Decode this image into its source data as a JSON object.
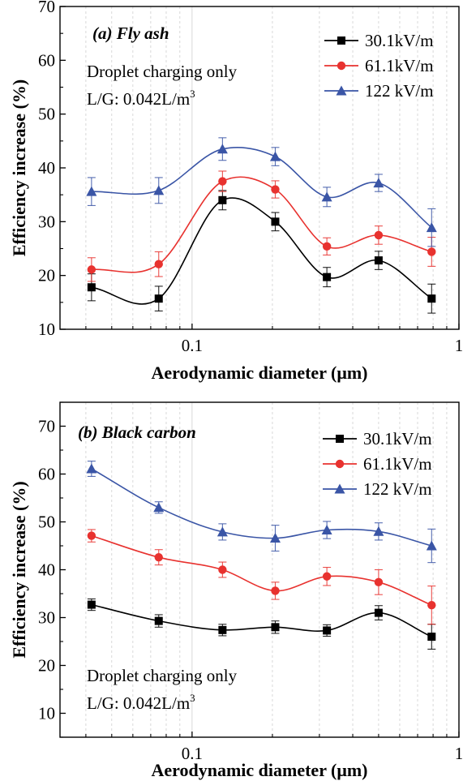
{
  "chart_data": [
    {
      "type": "line",
      "title": "(a) Fly ash",
      "xlabel": "Aerodynamic diameter (μm)",
      "ylabel": "Efficiency increase (%)",
      "xscale": "log",
      "xlim": [
        0.032,
        1.0
      ],
      "ylim": [
        10,
        70
      ],
      "xticks": [
        "0.1",
        "1"
      ],
      "yticks": [
        "10",
        "20",
        "30",
        "40",
        "50",
        "60",
        "70"
      ],
      "grid": "vertical minor gridlines",
      "legend_position": "top-right",
      "annotations": [
        "Droplet charging only",
        "L/G: 0.042L/m",
        "3"
      ],
      "x": [
        0.042,
        0.075,
        0.13,
        0.205,
        0.32,
        0.5,
        0.79
      ],
      "series": [
        {
          "name": "30.1kV/m",
          "color": "#000000",
          "marker": "square",
          "values": [
            17.8,
            15.7,
            34.0,
            30.0,
            19.7,
            22.8,
            15.7
          ],
          "errors": [
            2.5,
            2.3,
            1.8,
            1.7,
            1.8,
            1.7,
            2.7
          ]
        },
        {
          "name": "61.1kV/m",
          "color": "#e8322f",
          "marker": "circle",
          "values": [
            21.1,
            22.1,
            37.5,
            36.0,
            25.4,
            27.5,
            24.4
          ],
          "errors": [
            2.2,
            2.3,
            1.9,
            1.6,
            1.6,
            1.7,
            2.7
          ]
        },
        {
          "name": "122 kV/m",
          "color": "#3a55a6",
          "marker": "triangle",
          "values": [
            35.6,
            35.8,
            43.5,
            42.1,
            34.6,
            37.2,
            28.9
          ],
          "errors": [
            2.6,
            2.4,
            2.1,
            1.7,
            1.8,
            1.6,
            3.5
          ]
        }
      ]
    },
    {
      "type": "line",
      "title": "(b) Black carbon",
      "xlabel": "Aerodynamic diameter (μm)",
      "ylabel": "Efficiency increase (%)",
      "xscale": "log",
      "xlim": [
        0.032,
        1.0
      ],
      "ylim": [
        5,
        75
      ],
      "xticks": [
        "0.1",
        "1"
      ],
      "yticks": [
        "10",
        "20",
        "30",
        "40",
        "50",
        "60",
        "70"
      ],
      "grid": "vertical minor gridlines",
      "legend_position": "top-right",
      "annotations": [
        "Droplet charging only",
        "L/G: 0.042L/m",
        "3"
      ],
      "x": [
        0.042,
        0.075,
        0.13,
        0.205,
        0.32,
        0.5,
        0.79
      ],
      "series": [
        {
          "name": "30.1kV/m",
          "color": "#000000",
          "marker": "square",
          "values": [
            32.7,
            29.3,
            27.4,
            28.0,
            27.3,
            31.0,
            26.0
          ],
          "errors": [
            1.2,
            1.3,
            1.2,
            1.3,
            1.2,
            1.5,
            2.6
          ]
        },
        {
          "name": "61.1kV/m",
          "color": "#e8322f",
          "marker": "circle",
          "values": [
            47.1,
            42.6,
            40.0,
            35.6,
            38.6,
            37.4,
            32.6
          ],
          "errors": [
            1.3,
            1.6,
            1.6,
            1.8,
            1.9,
            2.6,
            4.0
          ]
        },
        {
          "name": "122 kV/m",
          "color": "#3a55a6",
          "marker": "triangle",
          "values": [
            61.1,
            53.0,
            47.9,
            46.6,
            48.3,
            48.0,
            45.0
          ],
          "errors": [
            1.6,
            1.2,
            1.7,
            2.7,
            1.8,
            1.8,
            3.5
          ]
        }
      ]
    }
  ]
}
